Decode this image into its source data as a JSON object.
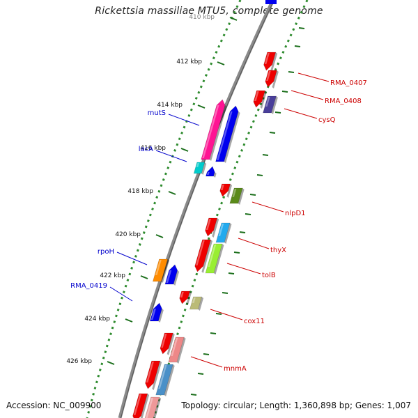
{
  "header": {
    "title": "Rickettsia massiliae MTU5, complete genome"
  },
  "footer": {
    "accession": "Accession: NC_009900",
    "topology": "Topology: circular; Length: 1,360,898 bp; Genes: 1,007"
  },
  "colors": {
    "backbone": "#8a8a8a",
    "scale_dots": "#2e8b2e",
    "tick": "#1a6e1a",
    "forward_label": "#0000cc",
    "reverse_label": "#cc0000"
  },
  "scale": {
    "ticks": [
      {
        "label": "410 kbp"
      },
      {
        "label": "412 kbp"
      },
      {
        "label": "414 kbp"
      },
      {
        "label": "416 kbp"
      },
      {
        "label": "418 kbp"
      },
      {
        "label": "420 kbp"
      },
      {
        "label": "422 kbp"
      },
      {
        "label": "424 kbp"
      },
      {
        "label": "426 kbp"
      }
    ]
  },
  "genes": {
    "forward": [
      {
        "label": "mutS",
        "color": "#0000ee"
      },
      {
        "label": "lacA",
        "color": "#0000ee"
      },
      {
        "label": "rpoH",
        "color": "#0000ee"
      },
      {
        "label": "RMA_0419",
        "color": "#0000ee"
      }
    ],
    "reverse": [
      {
        "label": "RMA_0407",
        "color": "#ee0000"
      },
      {
        "label": "RMA_0408",
        "color": "#ee0000"
      },
      {
        "label": "cysQ",
        "color": "#ee0000"
      },
      {
        "label": "nlpD1",
        "color": "#ee0000"
      },
      {
        "label": "thyX",
        "color": "#ee0000"
      },
      {
        "label": "tolB",
        "color": "#ee0000"
      },
      {
        "label": "cox11",
        "color": "#ee0000"
      },
      {
        "label": "mnmA",
        "color": "#ee0000"
      }
    ]
  }
}
